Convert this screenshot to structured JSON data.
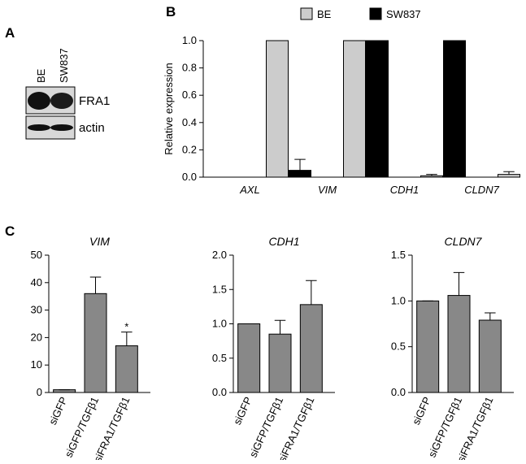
{
  "panel_labels": [
    "A",
    "B",
    "C"
  ],
  "blot": {
    "lanes": [
      "BE",
      "SW837"
    ],
    "bands": [
      "FRA1",
      "actin"
    ]
  },
  "chart_data": [
    {
      "type": "bar",
      "y_label": "Relative expression",
      "categories": [
        "AXL",
        "VIM",
        "CDH1",
        "CLDN7"
      ],
      "series": [
        {
          "name": "BE",
          "color": "#cccccc",
          "values": [
            1.0,
            1.0,
            0.01,
            0.02
          ],
          "errors": [
            0,
            0,
            0.01,
            0.02
          ]
        },
        {
          "name": "SW837",
          "color": "#000000",
          "values": [
            0.0,
            0.05,
            1.0,
            1.0
          ],
          "errors": [
            0,
            0.08,
            0,
            0
          ]
        }
      ],
      "ylim": [
        0,
        1.0
      ],
      "yticks": [
        {
          "value": 0,
          "label": "0.0"
        },
        0.2,
        0.4,
        0.6,
        0.8,
        {
          "value": 1,
          "label": "1.0"
        }
      ]
    },
    {
      "type": "bar",
      "title": "VIM",
      "categories": [
        "siGFP",
        "siGFP/TGFβ1",
        "siFRA1/TGFβ1"
      ],
      "values": [
        1,
        36,
        17
      ],
      "errors": [
        0,
        6,
        5
      ],
      "value_labels": [
        null,
        null,
        "*"
      ],
      "color": "#888888",
      "ylim": [
        0,
        50
      ],
      "yticks": [
        0,
        10,
        20,
        30,
        40,
        50
      ]
    },
    {
      "type": "bar",
      "title": "CDH1",
      "categories": [
        "siGFP",
        "siGFP/TGFβ1",
        "siFRA1/TGFβ1"
      ],
      "values": [
        1.0,
        0.85,
        1.28
      ],
      "errors": [
        0,
        0.2,
        0.35
      ],
      "color": "#888888",
      "ylim": [
        0,
        2.0
      ],
      "yticks": [
        {
          "value": 0,
          "label": "0.0"
        },
        0.5,
        {
          "value": 1,
          "label": "1.0"
        },
        1.5,
        {
          "value": 2,
          "label": "2.0"
        }
      ]
    },
    {
      "type": "bar",
      "title": "CLDN7",
      "categories": [
        "siGFP",
        "siGFP/TGFβ1",
        "siFRA1/TGFβ1"
      ],
      "values": [
        1.0,
        1.06,
        0.79
      ],
      "errors": [
        0,
        0.25,
        0.08
      ],
      "color": "#888888",
      "ylim": [
        0,
        1.5
      ],
      "yticks": [
        {
          "value": 0,
          "label": "0.0"
        },
        0.5,
        {
          "value": 1,
          "label": "1.0"
        },
        1.5
      ]
    }
  ]
}
